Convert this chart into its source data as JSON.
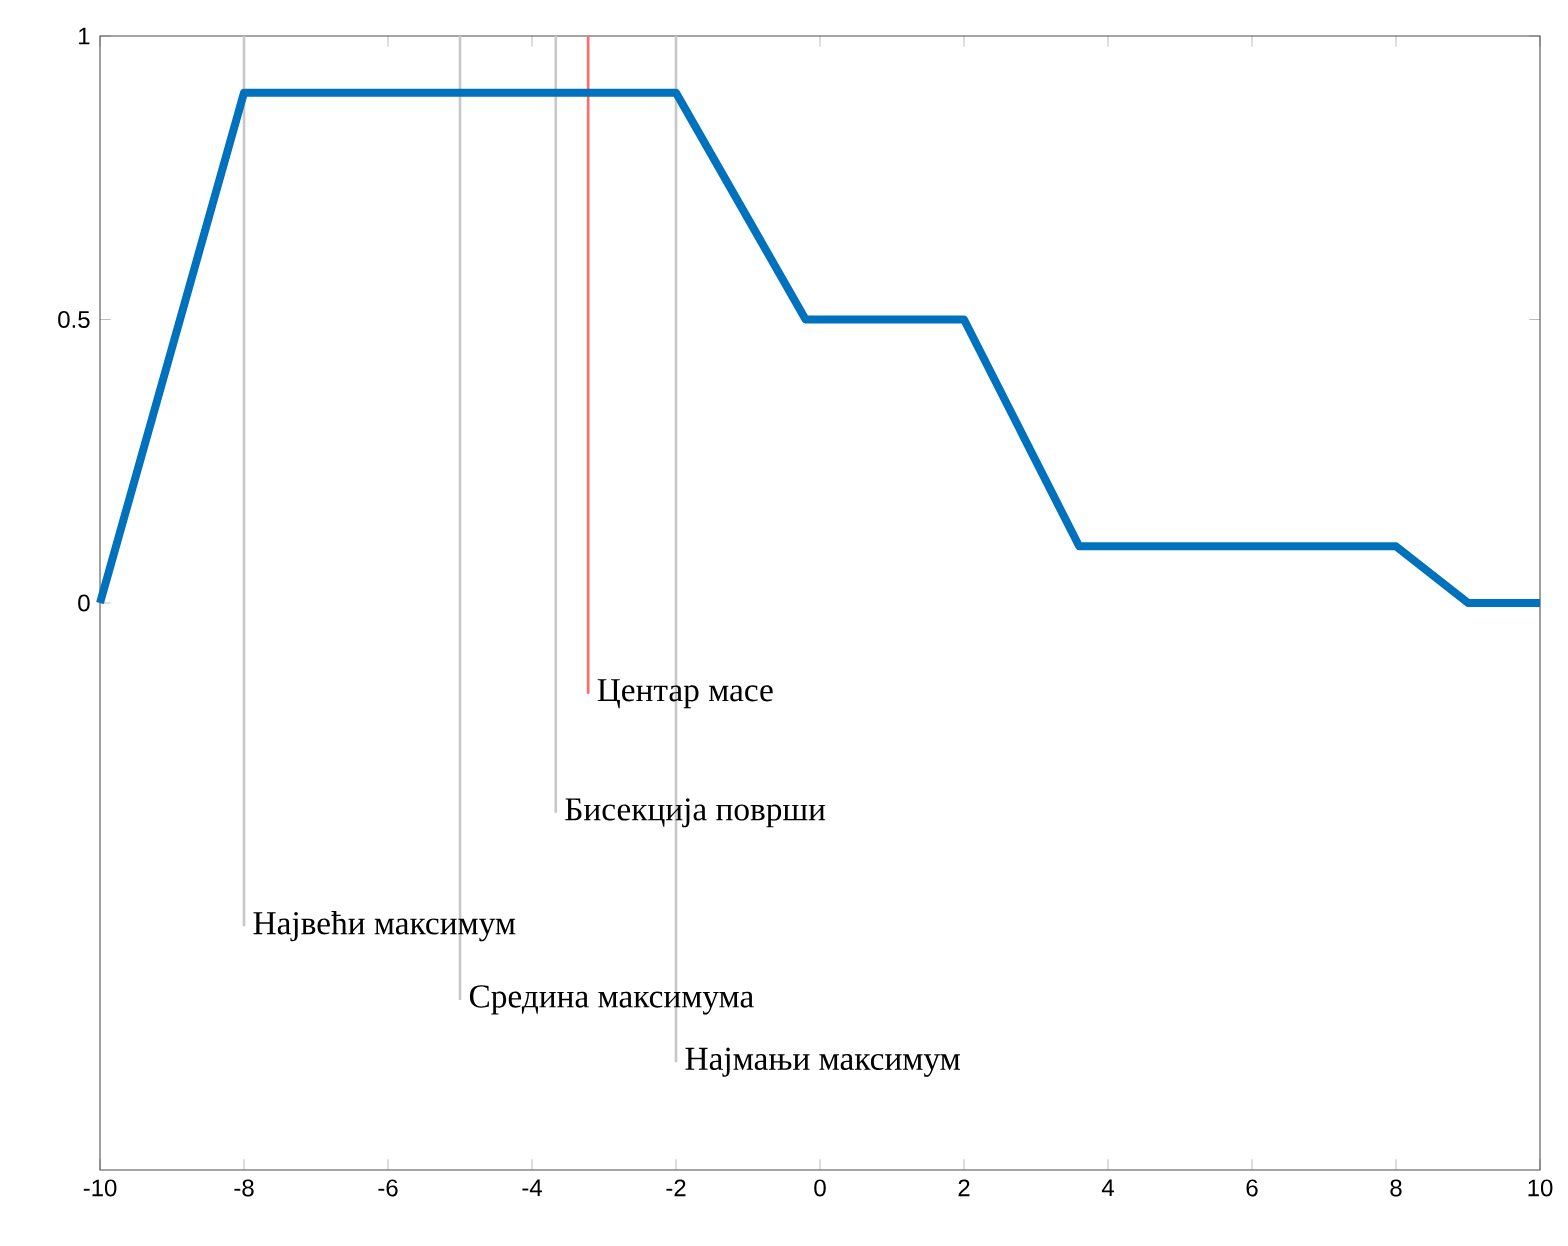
{
  "chart_data": {
    "type": "line",
    "x": [
      -10,
      -8,
      -2,
      -0.2,
      2,
      3.6,
      8,
      9,
      10
    ],
    "series": [
      {
        "color": "#0072bd",
        "values": [
          0,
          0.9,
          0.9,
          0.5,
          0.5,
          0.1,
          0.1,
          0,
          0
        ]
      }
    ],
    "xlim": [
      -10,
      10
    ],
    "ylim": [
      -1,
      1
    ],
    "xticks": [
      -10,
      -8,
      -6,
      -4,
      -2,
      0,
      2,
      4,
      6,
      8,
      10
    ],
    "yticks": [
      0,
      0.5,
      1
    ],
    "grid": false,
    "marker": "none",
    "line_style": "solid",
    "ref_lines": [
      {
        "axis": "x",
        "value": -8,
        "color": "#c8c8c8"
      },
      {
        "axis": "x",
        "value": -5,
        "color": "#c8c8c8"
      },
      {
        "axis": "x",
        "value": -3.67,
        "color": "#c8c8c8"
      },
      {
        "axis": "x",
        "value": -3.22,
        "color": "#ff6b6b"
      },
      {
        "axis": "x",
        "value": -2,
        "color": "#c8c8c8"
      }
    ],
    "annotations": [
      {
        "text": "Највећи максимум",
        "x": -8,
        "y": -0.57
      },
      {
        "text": "Средина максимума",
        "x": -5,
        "y": -0.7
      },
      {
        "text": "Бисекција површи",
        "x": -3.67,
        "y": -0.37
      },
      {
        "text": "Центар масе",
        "x": -3.22,
        "y": -0.16
      },
      {
        "text": "Најмањи максимум",
        "x": -2,
        "y": -0.81
      }
    ]
  }
}
